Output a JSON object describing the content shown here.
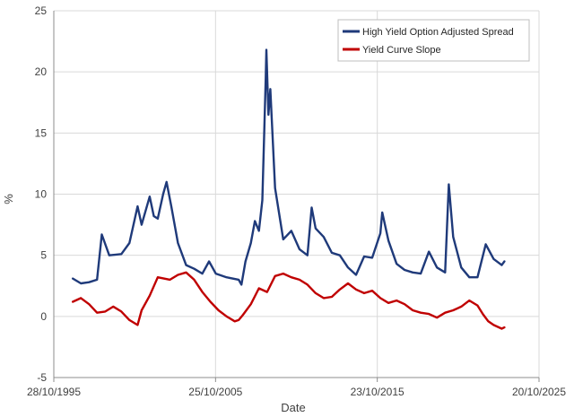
{
  "chart_data": {
    "type": "line",
    "title": "",
    "xlabel": "Date",
    "ylabel": "%",
    "ylim": [
      -5,
      25
    ],
    "yticks": [
      -5,
      0,
      5,
      10,
      15,
      20,
      25
    ],
    "xlim": [
      "1995-10-28",
      "2025-10-20"
    ],
    "xticks": [
      {
        "date": "1995-10-28",
        "label": "28/10/1995"
      },
      {
        "date": "2005-10-25",
        "label": "25/10/2005"
      },
      {
        "date": "2015-10-23",
        "label": "23/10/2015"
      },
      {
        "date": "2025-10-20",
        "label": "20/10/2025"
      }
    ],
    "grid": {
      "horizontal": true,
      "vertical": true
    },
    "legend_position": "top-right",
    "series": [
      {
        "name": "High Yield Option Adjusted Spread",
        "color": "#1f3a7a",
        "points": [
          [
            "1996-12-31",
            3.1
          ],
          [
            "1997-06-30",
            2.7
          ],
          [
            "1997-12-31",
            2.8
          ],
          [
            "1998-06-30",
            3.0
          ],
          [
            "1998-10-15",
            6.7
          ],
          [
            "1999-03-31",
            5.0
          ],
          [
            "1999-12-31",
            5.1
          ],
          [
            "2000-06-30",
            6.0
          ],
          [
            "2000-12-31",
            9.0
          ],
          [
            "2001-03-31",
            7.5
          ],
          [
            "2001-09-30",
            9.8
          ],
          [
            "2001-12-31",
            8.2
          ],
          [
            "2002-03-31",
            8.0
          ],
          [
            "2002-07-31",
            10.0
          ],
          [
            "2002-10-15",
            11.0
          ],
          [
            "2003-01-31",
            9.0
          ],
          [
            "2003-06-30",
            6.0
          ],
          [
            "2003-12-31",
            4.2
          ],
          [
            "2004-06-30",
            3.9
          ],
          [
            "2004-12-31",
            3.5
          ],
          [
            "2005-05-31",
            4.5
          ],
          [
            "2005-10-31",
            3.5
          ],
          [
            "2006-06-30",
            3.2
          ],
          [
            "2007-03-31",
            3.0
          ],
          [
            "2007-06-01",
            2.6
          ],
          [
            "2007-08-31",
            4.5
          ],
          [
            "2007-12-31",
            6.0
          ],
          [
            "2008-03-31",
            7.8
          ],
          [
            "2008-06-30",
            7.0
          ],
          [
            "2008-09-15",
            9.5
          ],
          [
            "2008-11-30",
            19.5
          ],
          [
            "2008-12-15",
            21.8
          ],
          [
            "2009-01-31",
            16.5
          ],
          [
            "2009-03-15",
            18.6
          ],
          [
            "2009-06-30",
            10.5
          ],
          [
            "2009-12-31",
            6.3
          ],
          [
            "2010-06-30",
            7.0
          ],
          [
            "2010-12-31",
            5.5
          ],
          [
            "2011-06-30",
            5.0
          ],
          [
            "2011-10-04",
            8.9
          ],
          [
            "2011-12-31",
            7.2
          ],
          [
            "2012-06-30",
            6.5
          ],
          [
            "2012-12-31",
            5.2
          ],
          [
            "2013-06-30",
            5.0
          ],
          [
            "2013-12-31",
            4.0
          ],
          [
            "2014-06-30",
            3.4
          ],
          [
            "2014-12-31",
            4.9
          ],
          [
            "2015-06-30",
            4.8
          ],
          [
            "2015-12-31",
            6.8
          ],
          [
            "2016-02-11",
            8.5
          ],
          [
            "2016-06-30",
            6.2
          ],
          [
            "2016-12-31",
            4.3
          ],
          [
            "2017-06-30",
            3.8
          ],
          [
            "2017-12-31",
            3.6
          ],
          [
            "2018-06-30",
            3.5
          ],
          [
            "2018-12-31",
            5.3
          ],
          [
            "2019-06-30",
            4.0
          ],
          [
            "2019-12-31",
            3.6
          ],
          [
            "2020-03-23",
            10.8
          ],
          [
            "2020-06-30",
            6.5
          ],
          [
            "2020-12-31",
            4.0
          ],
          [
            "2021-06-30",
            3.2
          ],
          [
            "2021-12-31",
            3.2
          ],
          [
            "2022-07-05",
            5.9
          ],
          [
            "2022-12-31",
            4.7
          ],
          [
            "2023-06-30",
            4.2
          ],
          [
            "2023-08-31",
            4.5
          ]
        ]
      },
      {
        "name": "Yield Curve Slope",
        "color": "#c00000",
        "points": [
          [
            "1996-12-31",
            1.2
          ],
          [
            "1997-06-30",
            1.5
          ],
          [
            "1997-12-31",
            1.0
          ],
          [
            "1998-06-30",
            0.3
          ],
          [
            "1998-12-31",
            0.4
          ],
          [
            "1999-06-30",
            0.8
          ],
          [
            "1999-12-31",
            0.4
          ],
          [
            "2000-06-30",
            -0.3
          ],
          [
            "2000-12-31",
            -0.7
          ],
          [
            "2001-03-31",
            0.5
          ],
          [
            "2001-09-30",
            1.7
          ],
          [
            "2002-03-31",
            3.2
          ],
          [
            "2002-12-31",
            3.0
          ],
          [
            "2003-06-30",
            3.4
          ],
          [
            "2003-12-31",
            3.6
          ],
          [
            "2004-06-30",
            3.0
          ],
          [
            "2004-12-31",
            2.0
          ],
          [
            "2005-06-30",
            1.2
          ],
          [
            "2005-12-31",
            0.5
          ],
          [
            "2006-06-30",
            0.0
          ],
          [
            "2006-12-31",
            -0.4
          ],
          [
            "2007-03-31",
            -0.3
          ],
          [
            "2007-06-30",
            0.1
          ],
          [
            "2007-12-31",
            1.0
          ],
          [
            "2008-06-30",
            2.3
          ],
          [
            "2008-12-31",
            2.0
          ],
          [
            "2009-06-30",
            3.3
          ],
          [
            "2009-12-31",
            3.5
          ],
          [
            "2010-06-30",
            3.2
          ],
          [
            "2010-12-31",
            3.0
          ],
          [
            "2011-06-30",
            2.6
          ],
          [
            "2011-12-31",
            1.9
          ],
          [
            "2012-06-30",
            1.5
          ],
          [
            "2012-12-31",
            1.6
          ],
          [
            "2013-06-30",
            2.2
          ],
          [
            "2013-12-31",
            2.7
          ],
          [
            "2014-06-30",
            2.2
          ],
          [
            "2014-12-31",
            1.9
          ],
          [
            "2015-06-30",
            2.1
          ],
          [
            "2015-12-31",
            1.5
          ],
          [
            "2016-06-30",
            1.1
          ],
          [
            "2016-12-31",
            1.3
          ],
          [
            "2017-06-30",
            1.0
          ],
          [
            "2017-12-31",
            0.5
          ],
          [
            "2018-06-30",
            0.3
          ],
          [
            "2018-12-31",
            0.2
          ],
          [
            "2019-06-30",
            -0.1
          ],
          [
            "2019-12-31",
            0.3
          ],
          [
            "2020-06-30",
            0.5
          ],
          [
            "2020-12-31",
            0.8
          ],
          [
            "2021-06-30",
            1.3
          ],
          [
            "2021-12-31",
            0.9
          ],
          [
            "2022-04-30",
            0.2
          ],
          [
            "2022-08-31",
            -0.4
          ],
          [
            "2022-12-31",
            -0.7
          ],
          [
            "2023-06-30",
            -1.0
          ],
          [
            "2023-08-31",
            -0.9
          ]
        ]
      }
    ]
  }
}
